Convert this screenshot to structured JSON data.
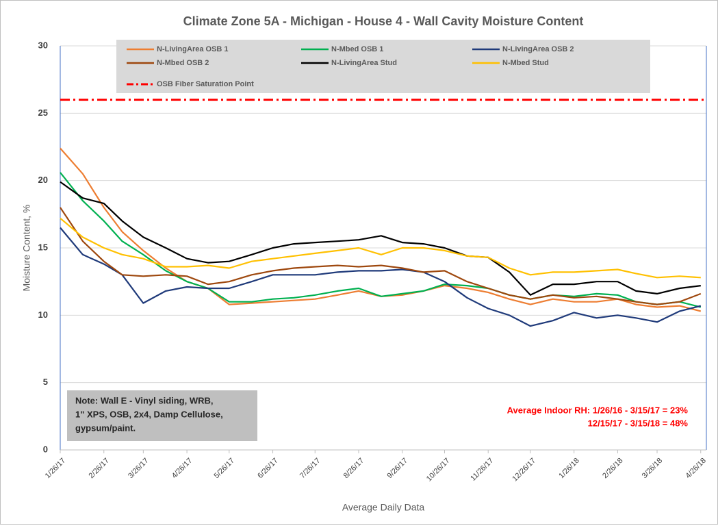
{
  "chart_data": {
    "type": "line",
    "title": "Climate Zone 5A - Michigan - House 4 - Wall Cavity Moisture Content",
    "x_label": "Average Daily Data",
    "y_label": "Moisture Content, %",
    "x": [
      "1/26/17",
      "2/11/17",
      "2/26/17",
      "3/11/17",
      "3/26/17",
      "4/11/17",
      "4/26/17",
      "5/11/17",
      "5/26/17",
      "6/11/17",
      "6/26/17",
      "7/11/17",
      "7/26/17",
      "8/11/17",
      "8/26/17",
      "9/11/17",
      "9/26/17",
      "10/11/17",
      "10/26/17",
      "11/11/17",
      "11/26/17",
      "12/11/17",
      "12/26/17",
      "1/11/18",
      "1/26/18",
      "2/11/18",
      "2/26/18",
      "3/11/18",
      "3/26/18",
      "4/11/18",
      "4/26/18"
    ],
    "series": [
      {
        "name": "N-LivingArea OSB 1",
        "color": "#ed7d31",
        "values": [
          22.4,
          20.5,
          18,
          16.2,
          14.8,
          13.5,
          12.5,
          12,
          10.8,
          10.9,
          11,
          11.1,
          11.2,
          11.5,
          11.8,
          11.4,
          11.5,
          11.8,
          12.2,
          12,
          11.7,
          11.2,
          10.8,
          11.2,
          11,
          11,
          11.2,
          10.8,
          10.6,
          10.7,
          10.3
        ]
      },
      {
        "name": "N-Mbed OSB 1",
        "color": "#00b050",
        "values": [
          20.6,
          18.5,
          17,
          15.5,
          14.5,
          13.3,
          12.5,
          12,
          11,
          11,
          11.2,
          11.3,
          11.5,
          11.8,
          12,
          11.4,
          11.6,
          11.8,
          12.3,
          12.2,
          12,
          11.5,
          11.2,
          11.5,
          11.4,
          11.6,
          11.5,
          11,
          10.8,
          11,
          10.6
        ]
      },
      {
        "name": "N-LivingArea OSB 2",
        "color": "#1f3a7a",
        "values": [
          16.5,
          14.5,
          13.8,
          13,
          10.9,
          11.8,
          12.1,
          12,
          12,
          12.5,
          13,
          13,
          13,
          13.2,
          13.3,
          13.3,
          13.4,
          13.2,
          12.5,
          11.3,
          10.5,
          10,
          9.2,
          9.6,
          10.2,
          9.8,
          10,
          9.8,
          9.5,
          10.3,
          10.7
        ]
      },
      {
        "name": "N-Mbed OSB 2",
        "color": "#9e480e",
        "values": [
          18,
          15.5,
          14,
          13,
          12.9,
          13,
          12.9,
          12.3,
          12.5,
          13,
          13.3,
          13.5,
          13.6,
          13.7,
          13.6,
          13.7,
          13.5,
          13.2,
          13.3,
          12.5,
          12,
          11.5,
          11.2,
          11.5,
          11.3,
          11.4,
          11.2,
          11,
          10.8,
          11,
          11.6
        ]
      },
      {
        "name": "N-LivingArea Stud",
        "color": "#000000",
        "values": [
          19.9,
          18.7,
          18.3,
          17,
          15.8,
          15,
          14.2,
          13.9,
          14,
          14.5,
          15,
          15.3,
          15.4,
          15.5,
          15.6,
          15.9,
          15.4,
          15.3,
          15,
          14.4,
          14.3,
          13.2,
          11.5,
          12.3,
          12.3,
          12.5,
          12.5,
          11.8,
          11.6,
          12,
          12.2
        ]
      },
      {
        "name": "N-Mbed Stud",
        "color": "#ffc000",
        "values": [
          17.2,
          15.8,
          15,
          14.5,
          14.2,
          13.6,
          13.6,
          13.7,
          13.5,
          14,
          14.2,
          14.4,
          14.6,
          14.8,
          15,
          14.5,
          15,
          15,
          14.8,
          14.4,
          14.3,
          13.5,
          13,
          13.2,
          13.2,
          13.3,
          13.4,
          13.1,
          12.8,
          12.9,
          12.8
        ]
      }
    ],
    "reference_line": {
      "name": "OSB Fiber Saturation Point",
      "value": 26,
      "color": "#ff0000"
    },
    "xlim": [
      "1/26/17",
      "4/30/18"
    ],
    "xticks": [
      "1/26/17",
      "2/26/17",
      "3/26/17",
      "4/26/17",
      "5/26/17",
      "6/26/17",
      "7/26/17",
      "8/26/17",
      "9/26/17",
      "10/26/17",
      "11/26/17",
      "12/26/17",
      "1/26/18",
      "2/26/18",
      "3/26/18",
      "4/26/18"
    ],
    "ylim": [
      0,
      30
    ],
    "yticks": [
      0,
      5,
      10,
      15,
      20,
      25,
      30
    ],
    "grid": true,
    "note": [
      "Note: Wall E - Vinyl siding, WRB,",
      "1\" XPS, OSB, 2x4, Damp Cellulose,",
      "gypsum/paint."
    ],
    "rh_annotation": [
      "Average Indoor RH: 1/26/16 - 3/15/17 = 23%",
      "12/15/17 - 3/15/18 = 48%"
    ]
  }
}
